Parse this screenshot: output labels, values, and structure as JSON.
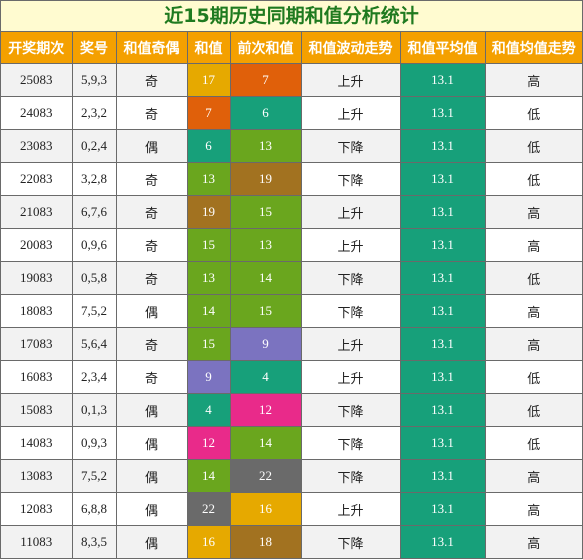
{
  "title": "近15期历史同期和值分析统计",
  "columns": [
    "开奖期次",
    "奖号",
    "和值奇偶",
    "和值",
    "前次和值",
    "和值波动走势",
    "和值平均值",
    "和值均值走势"
  ],
  "colors": {
    "val_4": "#17a07a",
    "val_6": "#17a07a",
    "val_7": "#e0600a",
    "val_9": "#7b73c0",
    "val_12": "#e92a8a",
    "val_13": "#6aa61e",
    "val_14": "#6aa61e",
    "val_15": "#6aa61e",
    "val_16": "#e6a900",
    "val_17": "#e6a900",
    "val_18": "#a27220",
    "val_19": "#a27220",
    "val_22": "#6a6a6a",
    "average": "#17a07a",
    "header": "#f4a000",
    "title_text": "#1f7a1f"
  },
  "rows": [
    {
      "issue": "25083",
      "numbers": "5,9,3",
      "parity": "奇",
      "sum": "17",
      "prev_sum": "7",
      "trend": "上升",
      "avg": "13.1",
      "avg_trend": "高"
    },
    {
      "issue": "24083",
      "numbers": "2,3,2",
      "parity": "奇",
      "sum": "7",
      "prev_sum": "6",
      "trend": "上升",
      "avg": "13.1",
      "avg_trend": "低"
    },
    {
      "issue": "23083",
      "numbers": "0,2,4",
      "parity": "偶",
      "sum": "6",
      "prev_sum": "13",
      "trend": "下降",
      "avg": "13.1",
      "avg_trend": "低"
    },
    {
      "issue": "22083",
      "numbers": "3,2,8",
      "parity": "奇",
      "sum": "13",
      "prev_sum": "19",
      "trend": "下降",
      "avg": "13.1",
      "avg_trend": "低"
    },
    {
      "issue": "21083",
      "numbers": "6,7,6",
      "parity": "奇",
      "sum": "19",
      "prev_sum": "15",
      "trend": "上升",
      "avg": "13.1",
      "avg_trend": "高"
    },
    {
      "issue": "20083",
      "numbers": "0,9,6",
      "parity": "奇",
      "sum": "15",
      "prev_sum": "13",
      "trend": "上升",
      "avg": "13.1",
      "avg_trend": "高"
    },
    {
      "issue": "19083",
      "numbers": "0,5,8",
      "parity": "奇",
      "sum": "13",
      "prev_sum": "14",
      "trend": "下降",
      "avg": "13.1",
      "avg_trend": "低"
    },
    {
      "issue": "18083",
      "numbers": "7,5,2",
      "parity": "偶",
      "sum": "14",
      "prev_sum": "15",
      "trend": "下降",
      "avg": "13.1",
      "avg_trend": "高"
    },
    {
      "issue": "17083",
      "numbers": "5,6,4",
      "parity": "奇",
      "sum": "15",
      "prev_sum": "9",
      "trend": "上升",
      "avg": "13.1",
      "avg_trend": "高"
    },
    {
      "issue": "16083",
      "numbers": "2,3,4",
      "parity": "奇",
      "sum": "9",
      "prev_sum": "4",
      "trend": "上升",
      "avg": "13.1",
      "avg_trend": "低"
    },
    {
      "issue": "15083",
      "numbers": "0,1,3",
      "parity": "偶",
      "sum": "4",
      "prev_sum": "12",
      "trend": "下降",
      "avg": "13.1",
      "avg_trend": "低"
    },
    {
      "issue": "14083",
      "numbers": "0,9,3",
      "parity": "偶",
      "sum": "12",
      "prev_sum": "14",
      "trend": "下降",
      "avg": "13.1",
      "avg_trend": "低"
    },
    {
      "issue": "13083",
      "numbers": "7,5,2",
      "parity": "偶",
      "sum": "14",
      "prev_sum": "22",
      "trend": "下降",
      "avg": "13.1",
      "avg_trend": "高"
    },
    {
      "issue": "12083",
      "numbers": "6,8,8",
      "parity": "偶",
      "sum": "22",
      "prev_sum": "16",
      "trend": "上升",
      "avg": "13.1",
      "avg_trend": "高"
    },
    {
      "issue": "11083",
      "numbers": "8,3,5",
      "parity": "偶",
      "sum": "16",
      "prev_sum": "18",
      "trend": "下降",
      "avg": "13.1",
      "avg_trend": "高"
    }
  ]
}
